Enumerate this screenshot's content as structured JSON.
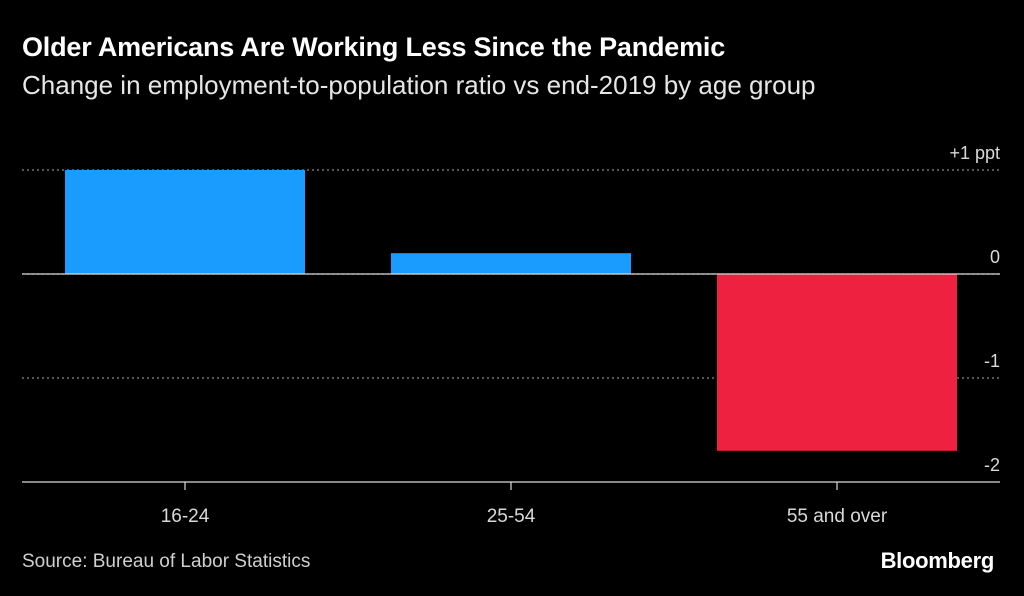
{
  "chart_data": {
    "type": "bar",
    "title": "Older Americans Are Working Less Since the Pandemic",
    "subtitle": "Change in employment-to-population ratio vs end-2019 by age group",
    "categories": [
      "16-24",
      "25-54",
      "55 and over"
    ],
    "values": [
      1.0,
      0.2,
      -1.7
    ],
    "ylim": [
      -2,
      1
    ],
    "yticks": [
      {
        "value": 1,
        "label": "+1 ppt"
      },
      {
        "value": 0,
        "label": "0"
      },
      {
        "value": -1,
        "label": "-1"
      },
      {
        "value": -2,
        "label": "-2"
      }
    ],
    "xlabel": "",
    "ylabel": "",
    "grid": true,
    "colors": {
      "positive": "#1a9cff",
      "negative": "#ee2240",
      "grid": "#8a8a8a",
      "axis": "#d9d9d9",
      "tick_text": "#d9d9d9"
    }
  },
  "source": "Source: Bureau of Labor Statistics",
  "brand": "Bloomberg"
}
